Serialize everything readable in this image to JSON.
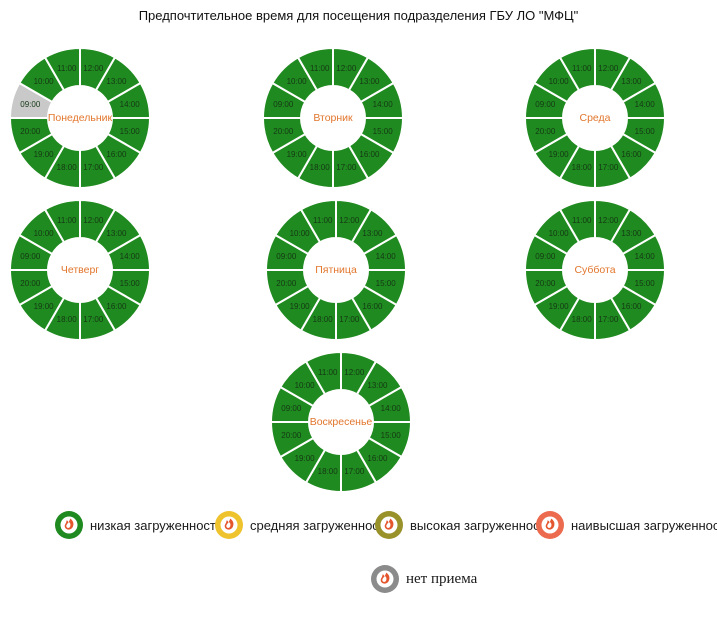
{
  "title": "Предпочтительное время для посещения подразделения ГБУ ЛО \"МФЦ\"",
  "colors": {
    "low": "#1f8a1f",
    "medium": "#eec32d",
    "high": "#99922b",
    "highest": "#ec6a4e",
    "closed": "#c9c9c9",
    "closed_ring": "#8b8b8b",
    "day_label": "#e2762d",
    "hour_label": "#153815",
    "segment_border": "#ffffff",
    "glyph_orange": "#e4572e"
  },
  "chart_data": [
    {
      "type": "pie",
      "title": "Понедельник",
      "layout": "clock-donut",
      "legend": "off",
      "segments": [
        {
          "label": "09:00",
          "value": 1,
          "status": "closed"
        },
        {
          "label": "10:00",
          "value": 1,
          "status": "low"
        },
        {
          "label": "11:00",
          "value": 1,
          "status": "low"
        },
        {
          "label": "12:00",
          "value": 1,
          "status": "low"
        },
        {
          "label": "13:00",
          "value": 1,
          "status": "low"
        },
        {
          "label": "14:00",
          "value": 1,
          "status": "low"
        },
        {
          "label": "15:00",
          "value": 1,
          "status": "low"
        },
        {
          "label": "16:00",
          "value": 1,
          "status": "low"
        },
        {
          "label": "17:00",
          "value": 1,
          "status": "low"
        },
        {
          "label": "18:00",
          "value": 1,
          "status": "low"
        },
        {
          "label": "19:00",
          "value": 1,
          "status": "low"
        },
        {
          "label": "20:00",
          "value": 1,
          "status": "low"
        }
      ]
    },
    {
      "type": "pie",
      "title": "Вторник",
      "layout": "clock-donut",
      "legend": "off",
      "segments": [
        {
          "label": "09:00",
          "value": 1,
          "status": "low"
        },
        {
          "label": "10:00",
          "value": 1,
          "status": "low"
        },
        {
          "label": "11:00",
          "value": 1,
          "status": "low"
        },
        {
          "label": "12:00",
          "value": 1,
          "status": "low"
        },
        {
          "label": "13:00",
          "value": 1,
          "status": "low"
        },
        {
          "label": "14:00",
          "value": 1,
          "status": "low"
        },
        {
          "label": "15:00",
          "value": 1,
          "status": "low"
        },
        {
          "label": "16:00",
          "value": 1,
          "status": "low"
        },
        {
          "label": "17:00",
          "value": 1,
          "status": "low"
        },
        {
          "label": "18:00",
          "value": 1,
          "status": "low"
        },
        {
          "label": "19:00",
          "value": 1,
          "status": "low"
        },
        {
          "label": "20:00",
          "value": 1,
          "status": "low"
        }
      ]
    },
    {
      "type": "pie",
      "title": "Среда",
      "layout": "clock-donut",
      "legend": "off",
      "segments": [
        {
          "label": "09:00",
          "value": 1,
          "status": "low"
        },
        {
          "label": "10:00",
          "value": 1,
          "status": "low"
        },
        {
          "label": "11:00",
          "value": 1,
          "status": "low"
        },
        {
          "label": "12:00",
          "value": 1,
          "status": "low"
        },
        {
          "label": "13:00",
          "value": 1,
          "status": "low"
        },
        {
          "label": "14:00",
          "value": 1,
          "status": "low"
        },
        {
          "label": "15:00",
          "value": 1,
          "status": "low"
        },
        {
          "label": "16:00",
          "value": 1,
          "status": "low"
        },
        {
          "label": "17:00",
          "value": 1,
          "status": "low"
        },
        {
          "label": "18:00",
          "value": 1,
          "status": "low"
        },
        {
          "label": "19:00",
          "value": 1,
          "status": "low"
        },
        {
          "label": "20:00",
          "value": 1,
          "status": "low"
        }
      ]
    },
    {
      "type": "pie",
      "title": "Четверг",
      "layout": "clock-donut",
      "legend": "off",
      "segments": [
        {
          "label": "09:00",
          "value": 1,
          "status": "low"
        },
        {
          "label": "10:00",
          "value": 1,
          "status": "low"
        },
        {
          "label": "11:00",
          "value": 1,
          "status": "low"
        },
        {
          "label": "12:00",
          "value": 1,
          "status": "low"
        },
        {
          "label": "13:00",
          "value": 1,
          "status": "low"
        },
        {
          "label": "14:00",
          "value": 1,
          "status": "low"
        },
        {
          "label": "15:00",
          "value": 1,
          "status": "low"
        },
        {
          "label": "16:00",
          "value": 1,
          "status": "low"
        },
        {
          "label": "17:00",
          "value": 1,
          "status": "low"
        },
        {
          "label": "18:00",
          "value": 1,
          "status": "low"
        },
        {
          "label": "19:00",
          "value": 1,
          "status": "low"
        },
        {
          "label": "20:00",
          "value": 1,
          "status": "low"
        }
      ]
    },
    {
      "type": "pie",
      "title": "Пятница",
      "layout": "clock-donut",
      "legend": "off",
      "segments": [
        {
          "label": "09:00",
          "value": 1,
          "status": "low"
        },
        {
          "label": "10:00",
          "value": 1,
          "status": "low"
        },
        {
          "label": "11:00",
          "value": 1,
          "status": "low"
        },
        {
          "label": "12:00",
          "value": 1,
          "status": "low"
        },
        {
          "label": "13:00",
          "value": 1,
          "status": "low"
        },
        {
          "label": "14:00",
          "value": 1,
          "status": "low"
        },
        {
          "label": "15:00",
          "value": 1,
          "status": "low"
        },
        {
          "label": "16:00",
          "value": 1,
          "status": "low"
        },
        {
          "label": "17:00",
          "value": 1,
          "status": "low"
        },
        {
          "label": "18:00",
          "value": 1,
          "status": "low"
        },
        {
          "label": "19:00",
          "value": 1,
          "status": "low"
        },
        {
          "label": "20:00",
          "value": 1,
          "status": "low"
        }
      ]
    },
    {
      "type": "pie",
      "title": "Суббота",
      "layout": "clock-donut",
      "legend": "off",
      "segments": [
        {
          "label": "09:00",
          "value": 1,
          "status": "low"
        },
        {
          "label": "10:00",
          "value": 1,
          "status": "low"
        },
        {
          "label": "11:00",
          "value": 1,
          "status": "low"
        },
        {
          "label": "12:00",
          "value": 1,
          "status": "low"
        },
        {
          "label": "13:00",
          "value": 1,
          "status": "low"
        },
        {
          "label": "14:00",
          "value": 1,
          "status": "low"
        },
        {
          "label": "15:00",
          "value": 1,
          "status": "low"
        },
        {
          "label": "16:00",
          "value": 1,
          "status": "low"
        },
        {
          "label": "17:00",
          "value": 1,
          "status": "low"
        },
        {
          "label": "18:00",
          "value": 1,
          "status": "low"
        },
        {
          "label": "19:00",
          "value": 1,
          "status": "low"
        },
        {
          "label": "20:00",
          "value": 1,
          "status": "low"
        }
      ]
    },
    {
      "type": "pie",
      "title": "Воскресенье",
      "layout": "clock-donut",
      "legend": "off",
      "segments": [
        {
          "label": "09:00",
          "value": 1,
          "status": "low"
        },
        {
          "label": "10:00",
          "value": 1,
          "status": "low"
        },
        {
          "label": "11:00",
          "value": 1,
          "status": "low"
        },
        {
          "label": "12:00",
          "value": 1,
          "status": "low"
        },
        {
          "label": "13:00",
          "value": 1,
          "status": "low"
        },
        {
          "label": "14:00",
          "value": 1,
          "status": "low"
        },
        {
          "label": "15:00",
          "value": 1,
          "status": "low"
        },
        {
          "label": "16:00",
          "value": 1,
          "status": "low"
        },
        {
          "label": "17:00",
          "value": 1,
          "status": "low"
        },
        {
          "label": "18:00",
          "value": 1,
          "status": "low"
        },
        {
          "label": "19:00",
          "value": 1,
          "status": "low"
        },
        {
          "label": "20:00",
          "value": 1,
          "status": "low"
        }
      ]
    }
  ],
  "legend": {
    "items": [
      {
        "label": "низкая загруженность",
        "status": "low"
      },
      {
        "label": "средняя загруженность",
        "status": "medium"
      },
      {
        "label": "высокая загруженность",
        "status": "high"
      },
      {
        "label": "наивысшая загруженность",
        "status": "highest"
      }
    ],
    "no_service_item": {
      "label": "нет приема",
      "status": "closed"
    }
  }
}
